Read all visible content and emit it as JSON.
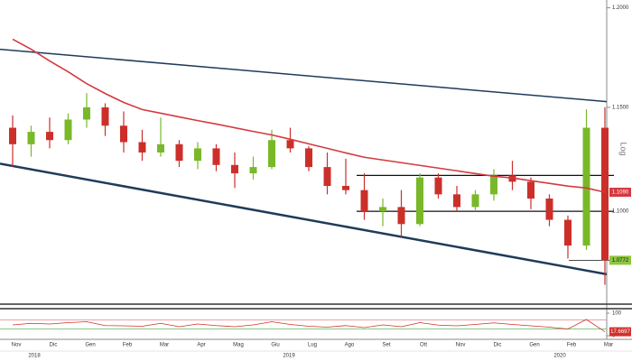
{
  "chart_data": {
    "type": "candlestick",
    "categories": [
      "Nov",
      null,
      "Dic",
      null,
      "Gen",
      null,
      "Feb",
      null,
      "Mar",
      null,
      "Apr",
      null,
      "Mag",
      null,
      "Giu",
      null,
      "Lug",
      null,
      "Ago",
      null,
      "Set",
      null,
      "Ott",
      null,
      "Nov",
      null,
      "Dic",
      null,
      "Gen",
      null,
      "Feb",
      null,
      "Mar"
    ],
    "year_labels": [
      "2018",
      "2019",
      "2020"
    ],
    "open": [
      1.14,
      1.132,
      1.138,
      1.134,
      1.144,
      1.15,
      1.141,
      1.133,
      1.128,
      1.132,
      1.124,
      1.13,
      1.122,
      1.118,
      1.121,
      1.134,
      1.13,
      1.121,
      1.112,
      1.11,
      1.1,
      1.102,
      1.094,
      1.116,
      1.108,
      1.102,
      1.108,
      1.117,
      1.114,
      1.106,
      1.096,
      1.084,
      1.14
    ],
    "high": [
      1.146,
      1.141,
      1.145,
      1.147,
      1.157,
      1.152,
      1.148,
      1.139,
      1.145,
      1.134,
      1.133,
      1.132,
      1.128,
      1.126,
      1.139,
      1.14,
      1.131,
      1.128,
      1.125,
      1.118,
      1.106,
      1.11,
      1.118,
      1.118,
      1.112,
      1.11,
      1.12,
      1.124,
      1.116,
      1.108,
      1.098,
      1.149,
      1.15
    ],
    "low": [
      1.121,
      1.126,
      1.13,
      1.132,
      1.14,
      1.136,
      1.128,
      1.124,
      1.126,
      1.121,
      1.12,
      1.119,
      1.111,
      1.115,
      1.12,
      1.128,
      1.119,
      1.108,
      1.108,
      1.096,
      1.093,
      1.088,
      1.093,
      1.106,
      1.1,
      1.1,
      1.105,
      1.11,
      1.101,
      1.093,
      1.078,
      1.082,
      1.066
    ],
    "close": [
      1.132,
      1.138,
      1.134,
      1.144,
      1.15,
      1.141,
      1.133,
      1.128,
      1.132,
      1.124,
      1.13,
      1.122,
      1.118,
      1.121,
      1.134,
      1.13,
      1.121,
      1.112,
      1.11,
      1.1,
      1.102,
      1.094,
      1.116,
      1.108,
      1.102,
      1.108,
      1.117,
      1.114,
      1.106,
      1.096,
      1.084,
      1.14,
      1.0772
    ],
    "up_color": "#79b829",
    "down_color": "#cc2f2a",
    "log_scale": true,
    "scale_label": "Log",
    "ylim": [
      1.058,
      1.204
    ],
    "yticks": [
      {
        "value": 1.2,
        "label": "1.2000"
      },
      {
        "value": 1.15,
        "label": "1.1500"
      },
      {
        "value": 1.1,
        "label": "1.1000"
      }
    ],
    "moving_average": {
      "color": "#d43a3f",
      "last_value_label": "1.1090",
      "values": [
        1.184,
        1.1789,
        1.173,
        1.1676,
        1.1617,
        1.1568,
        1.1524,
        1.1489,
        1.1471,
        1.1453,
        1.1435,
        1.1418,
        1.14,
        1.1382,
        1.1365,
        1.1344,
        1.1322,
        1.13,
        1.1278,
        1.1257,
        1.1244,
        1.1231,
        1.1218,
        1.1205,
        1.1192,
        1.1179,
        1.1166,
        1.1158,
        1.1145,
        1.1132,
        1.1119,
        1.111,
        1.109
      ]
    },
    "trendlines": [
      {
        "color": "#1f3b5a",
        "values": [
          1.1789,
          1.1528
        ]
      },
      {
        "color": "#1f3b5a",
        "values": [
          1.1226,
          1.0708
        ]
      }
    ],
    "levels": [
      {
        "color": "#111111",
        "value": 1.117
      },
      {
        "color": "#111111",
        "value": 1.1
      },
      {
        "color": "#111111",
        "value": 1.0772
      }
    ],
    "last_price_color": "#8cc63f",
    "rsi": {
      "color": "#d0312d",
      "ylim": [
        0,
        100
      ],
      "yticks": [
        0,
        100
      ],
      "levels": [
        {
          "value": 70,
          "color": "#e7a3a8"
        },
        {
          "value": 30,
          "color": "#86c986"
        }
      ],
      "values": [
        48,
        55,
        52,
        58,
        62,
        45,
        44,
        42,
        55,
        40,
        52,
        45,
        40,
        48,
        62,
        50,
        42,
        38,
        45,
        36,
        48,
        40,
        58,
        47,
        44,
        50,
        57,
        50,
        44,
        38,
        30,
        72,
        17.6697
      ]
    }
  }
}
